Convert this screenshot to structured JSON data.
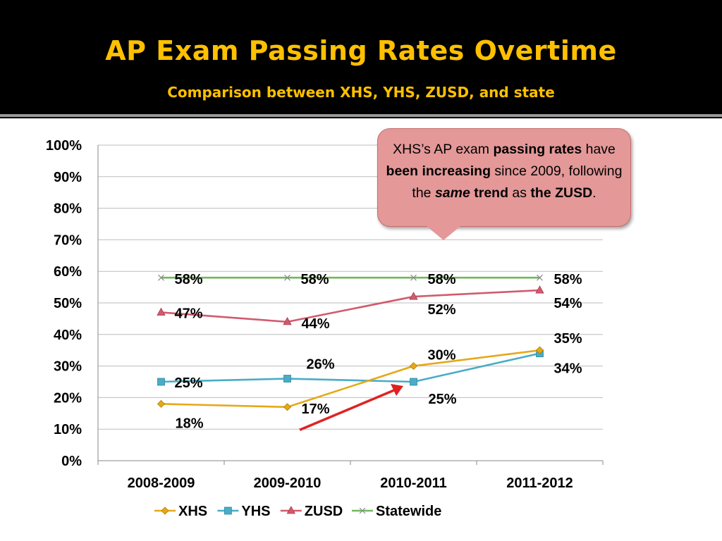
{
  "slide": {
    "title": "AP Exam Passing Rates Overtime",
    "subtitle": "Comparison between XHS, YHS, ZUSD, and state"
  },
  "callout": {
    "t1": "XHS’s AP exam ",
    "t2": "passing rates",
    "t3": " have ",
    "t4": "been increasing",
    "t5": " since 2009, following the ",
    "t6": "same",
    "t7": " trend",
    "t8": " as ",
    "t9": "the ZUSD",
    "t10": "."
  },
  "colors": {
    "xhs": "#e6a817",
    "yhs": "#4aacc6",
    "zusd": "#d15b6e",
    "statewide": "#71b85a",
    "arrow": "#e02020"
  },
  "chart_data": {
    "type": "line",
    "categories": [
      "2008-2009",
      "2009-2010",
      "2010-2011",
      "2011-2012"
    ],
    "ylim": [
      0,
      100
    ],
    "y_ticks": [
      "0%",
      "10%",
      "20%",
      "30%",
      "40%",
      "50%",
      "60%",
      "70%",
      "80%",
      "90%",
      "100%"
    ],
    "grid": true,
    "legend": "bottom",
    "series": [
      {
        "name": "XHS",
        "key": "xhs",
        "marker": "diamond",
        "values": [
          18,
          17,
          30,
          35
        ],
        "labels": [
          "18%",
          "17%",
          "30%",
          "35%"
        ]
      },
      {
        "name": "YHS",
        "key": "yhs",
        "marker": "square",
        "values": [
          25,
          26,
          25,
          34
        ],
        "labels": [
          "25%",
          "26%",
          "25%",
          "34%"
        ]
      },
      {
        "name": "ZUSD",
        "key": "zusd",
        "marker": "triangle",
        "values": [
          47,
          44,
          52,
          54
        ],
        "labels": [
          "47%",
          "44%",
          "52%",
          "54%"
        ]
      },
      {
        "name": "Statewide",
        "key": "statewide",
        "marker": "x",
        "values": [
          58,
          58,
          58,
          58
        ],
        "labels": [
          "58%",
          "58%",
          "58%",
          "58%"
        ]
      }
    ]
  }
}
